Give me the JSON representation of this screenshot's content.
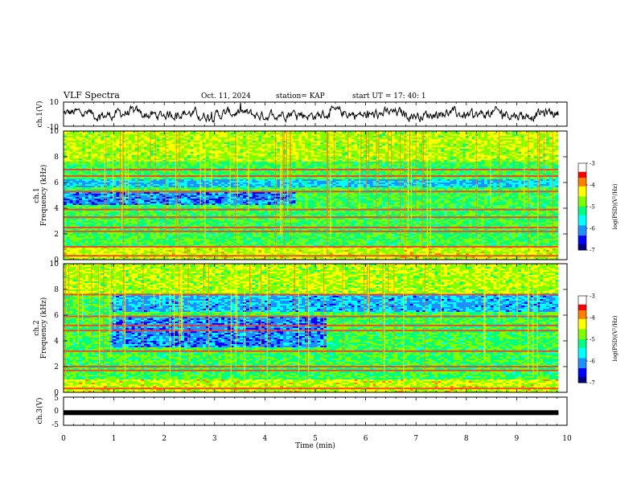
{
  "header": {
    "title": "VLF Spectra",
    "date": "Oct. 11, 2024",
    "station": "station= KAP",
    "start": "start  UT  =   17: 40: 1"
  },
  "colors": {
    "colormap": [
      "#00007f",
      "#0000ff",
      "#1e90ff",
      "#00ffff",
      "#00ff7f",
      "#7fff00",
      "#ffff00",
      "#ff7f00",
      "#ff0000",
      "#ffffff"
    ]
  },
  "chart_data": [
    {
      "type": "line",
      "name": "ch1-waveform",
      "ylabel": "ch.1(V)",
      "ylim": [
        -10,
        10
      ],
      "yticks": [
        "10",
        "-10"
      ],
      "xlim": [
        0,
        10
      ],
      "description_of_signal": "noisy waveform around 0 V, amplitude about ±5 V, occasional spikes near 9.0 min"
    },
    {
      "type": "heatmap",
      "name": "ch1-spectrogram",
      "ylabel": "ch.1\nFrequency (kHz)",
      "ylabel_parts": [
        "ch.1",
        "Frequency  (kHz)"
      ],
      "ylim": [
        0,
        10
      ],
      "yticks": [
        "0",
        "2",
        "4",
        "6",
        "8",
        "10"
      ],
      "xlim": [
        0,
        9.83
      ],
      "colorbar": {
        "label": "log(PSD)(V²/Hz)",
        "range": [
          -7,
          -3
        ],
        "ticks": [
          "-3",
          "-4",
          "-5",
          "-6",
          "-7"
        ]
      },
      "lines_khz": [
        0.3,
        1.0,
        2.2,
        2.5,
        3.3,
        3.9,
        5.3,
        6.5,
        7.0
      ],
      "quiet_band": {
        "from_khz": 4.2,
        "to_khz": 5.2,
        "until_min": 4.6
      }
    },
    {
      "type": "heatmap",
      "name": "ch2-spectrogram",
      "ylabel_parts": [
        "ch.2",
        "Frequency  (kHz)"
      ],
      "ylim": [
        0,
        10
      ],
      "yticks": [
        "0",
        "2",
        "4",
        "6",
        "8",
        "10"
      ],
      "xlim": [
        0,
        9.83
      ],
      "colorbar": {
        "label": "log(PSD)(V²/Hz)",
        "range": [
          -7,
          -3
        ],
        "ticks": [
          "-3",
          "-4",
          "-5",
          "-6",
          "-7"
        ]
      },
      "lines_khz": [
        0.3,
        1.7,
        2.0,
        3.2,
        4.8,
        5.2,
        5.9,
        7.6
      ],
      "quiet_band": {
        "from_khz": 3.5,
        "to_khz": 5.9,
        "from_min": 0.9,
        "until_min": 5.2
      }
    },
    {
      "type": "line",
      "name": "ch3-waveform",
      "ylabel": "ch.3(V)",
      "ylim": [
        -5,
        5
      ],
      "yticks": [
        "5",
        "0",
        "-5"
      ],
      "xlim": [
        0,
        10
      ],
      "xlabel": "Time  (min)",
      "xticks": [
        "0",
        "1",
        "2",
        "3",
        "4",
        "5",
        "6",
        "7",
        "8",
        "9",
        "10"
      ],
      "level": -0.5
    }
  ]
}
